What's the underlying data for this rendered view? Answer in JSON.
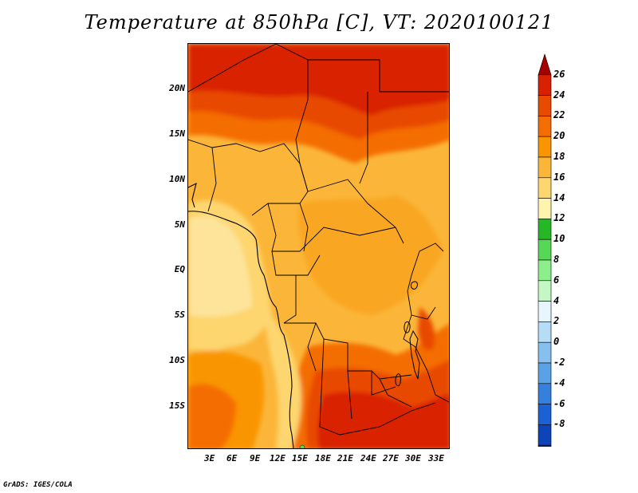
{
  "title": "Temperature at 850hPa [C], VT: 2020100121",
  "footer": "GrADS: IGES/COLA",
  "lat_labels": [
    "20N",
    "15N",
    "10N",
    "5N",
    "EQ",
    "5S",
    "10S",
    "15S"
  ],
  "lon_labels": [
    "3E",
    "6E",
    "9E",
    "12E",
    "15E",
    "18E",
    "21E",
    "24E",
    "27E",
    "30E",
    "33E"
  ],
  "colorbar": {
    "labels": [
      "26",
      "24",
      "22",
      "20",
      "18",
      "16",
      "14",
      "12",
      "10",
      "8",
      "6",
      "4",
      "2",
      "0",
      "-2",
      "-4",
      "-6",
      "-8"
    ],
    "colors": [
      "#a50000",
      "#d82100",
      "#e84a00",
      "#f46d00",
      "#f99500",
      "#fbb63a",
      "#fdd66f",
      "#fdf4ae",
      "#26b726",
      "#56d856",
      "#8cef8c",
      "#c4f7c4",
      "#e6f6fc",
      "#b7dcf6",
      "#85c0ef",
      "#5ba1e6",
      "#3580dc",
      "#1a62d4",
      "#0d45b8",
      "#05238c",
      "#000068"
    ]
  }
}
